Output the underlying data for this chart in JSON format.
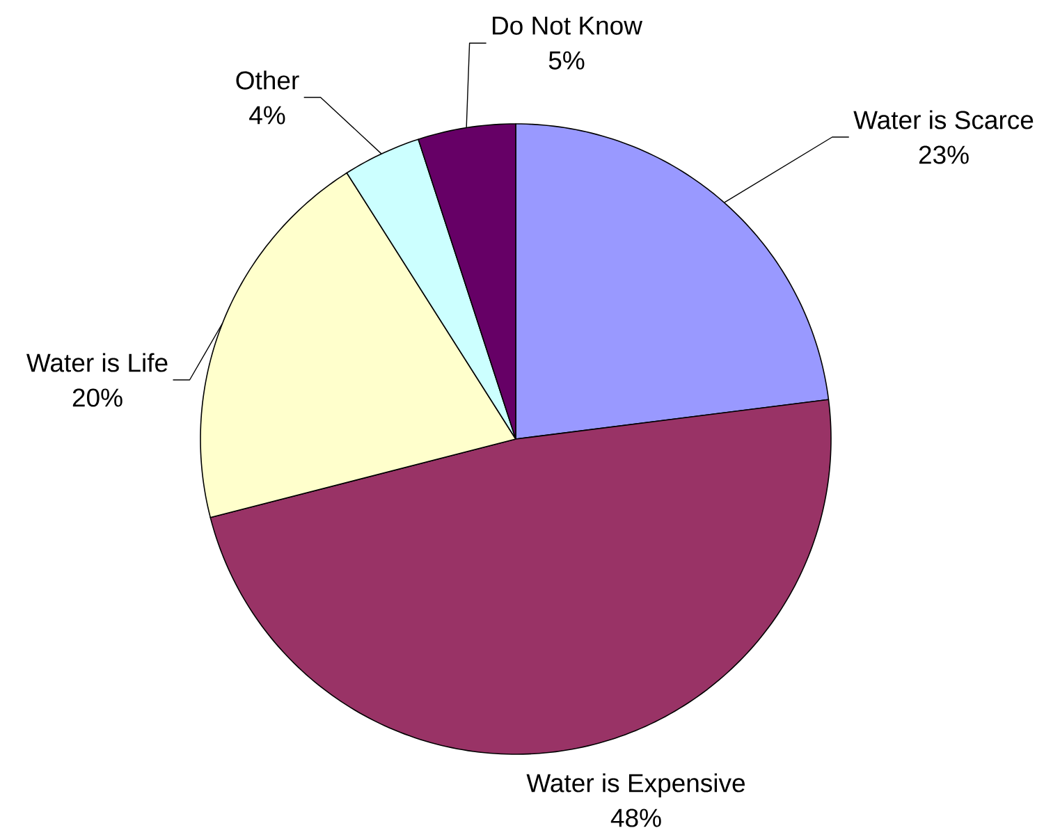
{
  "chart_data": {
    "type": "pie",
    "categories": [
      "Water is Scarce",
      "Water is Expensive",
      "Water is Life",
      "Other",
      "Do Not Know"
    ],
    "values": [
      23,
      48,
      20,
      4,
      5
    ],
    "colors": [
      "#9999ff",
      "#993366",
      "#ffffcc",
      "#ccffff",
      "#660066"
    ],
    "value_labels": [
      "23%",
      "48%",
      "20%",
      "4%",
      "5%"
    ]
  }
}
